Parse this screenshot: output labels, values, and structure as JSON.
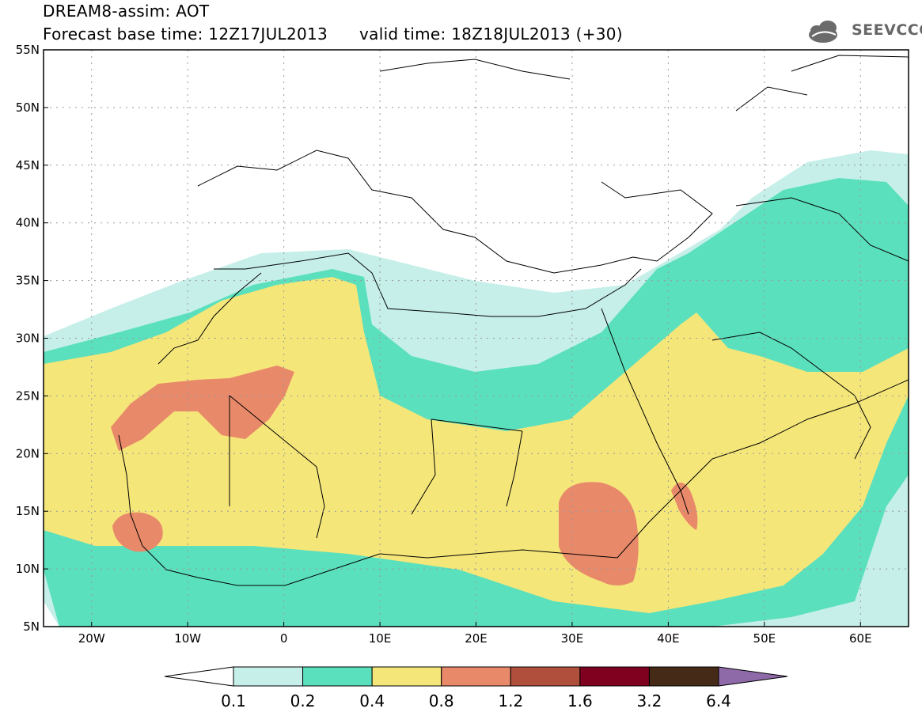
{
  "header": {
    "title": "DREAM8-assim: AOT",
    "subtitle": "Forecast base time: 12Z17JUL2013      valid time: 18Z18JUL2013 (+30)"
  },
  "logo": {
    "text": "SEEVCCC",
    "icon": "cloud-icon"
  },
  "map": {
    "lat_labels": [
      "55N",
      "50N",
      "45N",
      "40N",
      "35N",
      "30N",
      "25N",
      "20N",
      "15N",
      "10N",
      "5N"
    ],
    "lon_labels": [
      "20W",
      "10W",
      "0",
      "10E",
      "20E",
      "30E",
      "40E",
      "50E",
      "60E"
    ],
    "lat_range": [
      5,
      55
    ],
    "lon_range": [
      -25,
      65
    ],
    "grid": "dotted"
  },
  "colorbar": {
    "colors": [
      "#ffffff",
      "#c6efe9",
      "#5be0bd",
      "#f5e67a",
      "#e8896a",
      "#b0503c",
      "#800020",
      "#442a17",
      "#8f6aa8"
    ],
    "labels": [
      "0.1",
      "0.2",
      "0.4",
      "0.8",
      "1.2",
      "1.6",
      "3.2",
      "6.4"
    ]
  },
  "colors": {
    "aot_0_1_0_2": "#c6efe9",
    "aot_0_2_0_4": "#5be0bd",
    "aot_0_4_0_8": "#f5e67a",
    "aot_0_8_1_2": "#e8896a"
  }
}
